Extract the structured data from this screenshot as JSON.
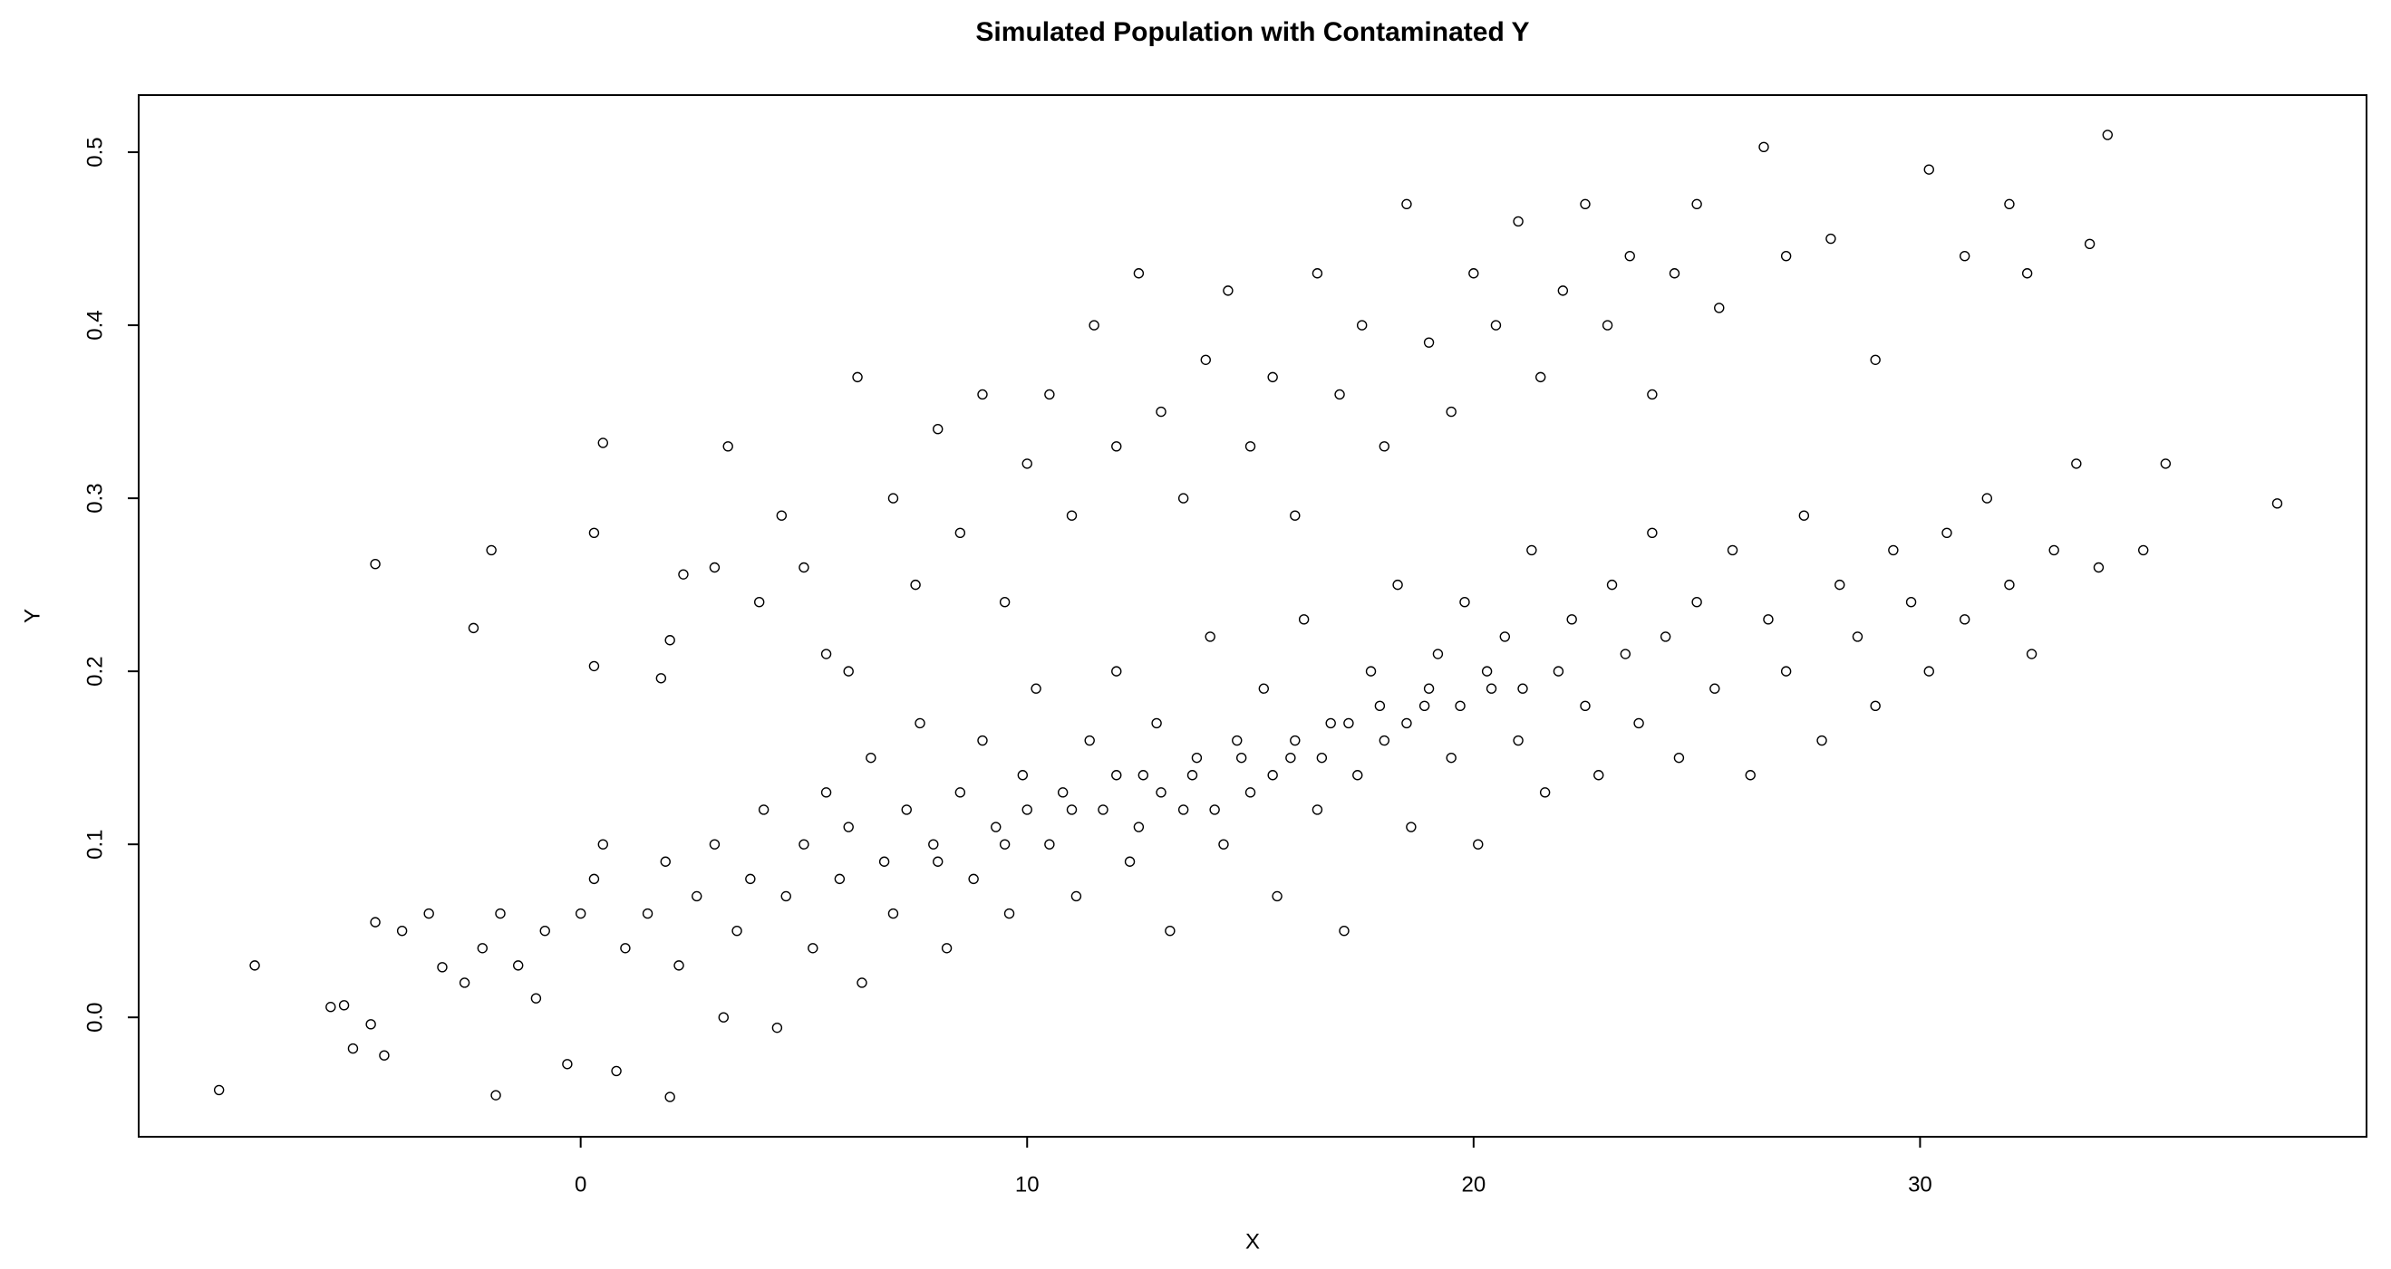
{
  "chart_data": {
    "type": "scatter",
    "title": "Simulated Population with Contaminated Y",
    "x_label": "X",
    "y_label": "Y",
    "color": "#000000",
    "xlim": [
      -9.9,
      40
    ],
    "ylim": [
      -0.069,
      0.533
    ],
    "xticks": [
      0,
      10,
      20,
      30
    ],
    "yticks": [
      {
        "value": 0,
        "label": "0.0"
      },
      0.1,
      0.2,
      0.3,
      0.4,
      0.5
    ],
    "x": [
      -8.1,
      -7.3,
      -5.6,
      -5.3,
      -5.1,
      -4.7,
      -4.6,
      -4.4,
      -4.0,
      -3.4,
      -3.1,
      -2.6,
      -2.2,
      -1.9,
      -1.8,
      -1.4,
      -1.0,
      -0.8,
      -0.3,
      0.0,
      0.3,
      0.5,
      0.8,
      1.0,
      1.5,
      1.9,
      2.0,
      2.2,
      2.6,
      3.0,
      3.2,
      3.5,
      3.8,
      4.1,
      4.4,
      4.6,
      5.0,
      5.2,
      5.5,
      5.8,
      6.0,
      6.3,
      6.5,
      6.8,
      7.0,
      7.3,
      7.6,
      7.9,
      8.2,
      8.5,
      8.8,
      9.0,
      9.3,
      9.6,
      9.9,
      10.2,
      10.5,
      10.8,
      11.1,
      11.4,
      11.7,
      12.0,
      12.3,
      12.6,
      12.9,
      13.2,
      13.5,
      13.8,
      14.1,
      14.4,
      14.7,
      15.0,
      15.3,
      15.6,
      15.9,
      16.2,
      16.5,
      16.8,
      17.1,
      17.4,
      17.7,
      18.0,
      18.3,
      18.6,
      18.9,
      19.2,
      19.5,
      19.8,
      20.1,
      20.4,
      20.7,
      21.0,
      21.3,
      21.6,
      21.9,
      22.2,
      22.5,
      22.8,
      23.1,
      23.4,
      23.7,
      24.0,
      24.3,
      24.6,
      25.0,
      25.4,
      25.8,
      26.2,
      26.6,
      27.0,
      27.4,
      27.8,
      28.2,
      28.6,
      29.0,
      29.4,
      29.8,
      30.2,
      30.6,
      31.0,
      31.5,
      32.0,
      32.5,
      33.0,
      33.5,
      34.0,
      35.0,
      35.5,
      38.0,
      11.0,
      12.5,
      13.0,
      13.7,
      14.2,
      14.8,
      15.5,
      16.0,
      16.6,
      17.2,
      17.9,
      18.5,
      19.0,
      19.7,
      20.3,
      21.1,
      9.5,
      8.0,
      10.0,
      12.0,
      -4.6,
      -2.4,
      -2.0,
      0.3,
      0.5,
      0.3,
      1.8,
      2.0,
      2.3,
      3.0,
      3.3,
      4.0,
      4.5,
      5.0,
      5.5,
      6.0,
      6.2,
      7.0,
      7.5,
      8.0,
      8.5,
      9.0,
      9.5,
      10.0,
      10.5,
      11.0,
      11.5,
      12.0,
      12.5,
      13.0,
      13.5,
      14.0,
      14.5,
      15.0,
      15.5,
      16.0,
      16.5,
      17.0,
      17.5,
      18.0,
      18.5,
      19.0,
      19.5,
      20.0,
      20.5,
      21.0,
      21.5,
      22.0,
      22.5,
      23.0,
      23.5,
      24.0,
      24.5,
      25.0,
      25.5,
      26.5,
      27.0,
      28.0,
      29.0,
      30.2,
      31.0,
      32.0,
      32.4,
      33.8,
      34.2
    ],
    "values": [
      -0.042,
      0.03,
      0.006,
      0.007,
      -0.018,
      -0.004,
      0.055,
      -0.022,
      0.05,
      0.06,
      0.029,
      0.02,
      0.04,
      -0.045,
      0.06,
      0.03,
      0.011,
      0.05,
      -0.027,
      0.06,
      0.08,
      0.1,
      -0.031,
      0.04,
      0.06,
      0.09,
      -0.046,
      0.03,
      0.07,
      0.1,
      0.0,
      0.05,
      0.08,
      0.12,
      -0.006,
      0.07,
      0.1,
      0.04,
      0.13,
      0.08,
      0.11,
      0.02,
      0.15,
      0.09,
      0.06,
      0.12,
      0.17,
      0.1,
      0.04,
      0.13,
      0.08,
      0.16,
      0.11,
      0.06,
      0.14,
      0.19,
      0.1,
      0.13,
      0.07,
      0.16,
      0.12,
      0.2,
      0.09,
      0.14,
      0.17,
      0.05,
      0.12,
      0.15,
      0.22,
      0.1,
      0.16,
      0.13,
      0.19,
      0.07,
      0.15,
      0.23,
      0.12,
      0.17,
      0.05,
      0.14,
      0.2,
      0.16,
      0.25,
      0.11,
      0.18,
      0.21,
      0.15,
      0.24,
      0.1,
      0.19,
      0.22,
      0.16,
      0.27,
      0.13,
      0.2,
      0.23,
      0.18,
      0.14,
      0.25,
      0.21,
      0.17,
      0.28,
      0.22,
      0.15,
      0.24,
      0.19,
      0.27,
      0.14,
      0.23,
      0.2,
      0.29,
      0.16,
      0.25,
      0.22,
      0.18,
      0.27,
      0.24,
      0.2,
      0.28,
      0.23,
      0.3,
      0.25,
      0.21,
      0.27,
      0.32,
      0.26,
      0.27,
      0.32,
      0.297,
      0.12,
      0.11,
      0.13,
      0.14,
      0.12,
      0.15,
      0.14,
      0.16,
      0.15,
      0.17,
      0.18,
      0.17,
      0.19,
      0.18,
      0.2,
      0.19,
      0.1,
      0.09,
      0.12,
      0.14,
      0.262,
      0.225,
      0.27,
      0.28,
      0.332,
      0.203,
      0.196,
      0.218,
      0.256,
      0.26,
      0.33,
      0.24,
      0.29,
      0.26,
      0.21,
      0.2,
      0.37,
      0.3,
      0.25,
      0.34,
      0.28,
      0.36,
      0.24,
      0.32,
      0.36,
      0.29,
      0.4,
      0.33,
      0.43,
      0.35,
      0.3,
      0.38,
      0.42,
      0.33,
      0.37,
      0.29,
      0.43,
      0.36,
      0.4,
      0.33,
      0.47,
      0.39,
      0.35,
      0.43,
      0.4,
      0.46,
      0.37,
      0.42,
      0.47,
      0.4,
      0.44,
      0.36,
      0.43,
      0.47,
      0.41,
      0.503,
      0.44,
      0.45,
      0.38,
      0.49,
      0.44,
      0.47,
      0.43,
      0.447,
      0.51
    ]
  }
}
